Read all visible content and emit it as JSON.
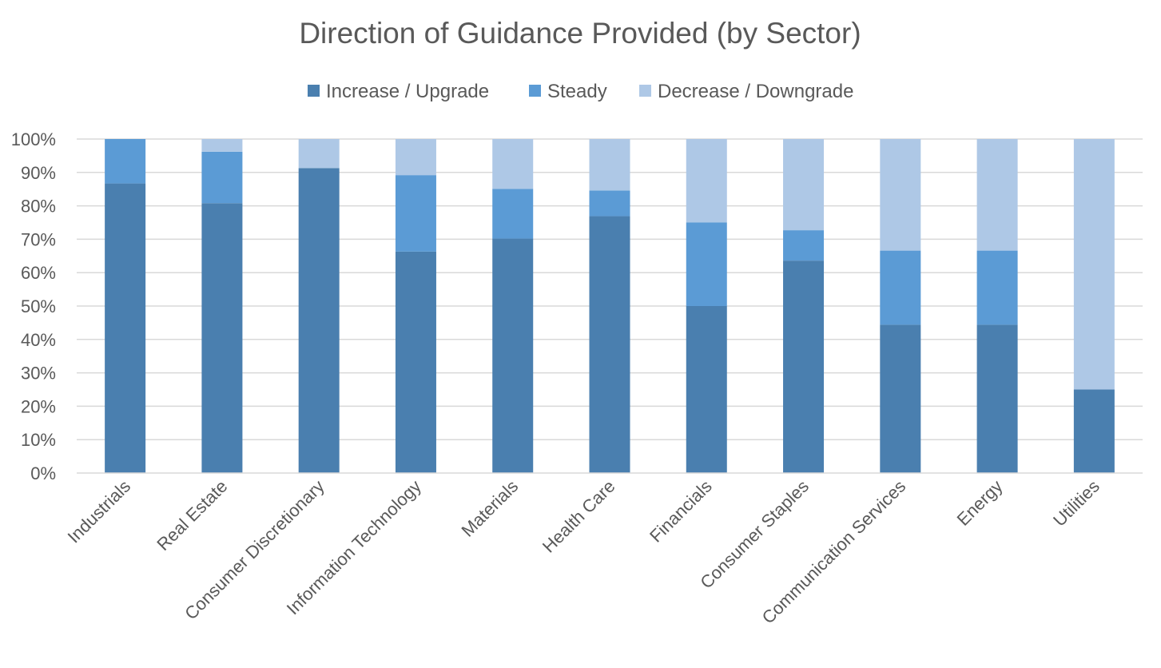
{
  "chart_data": {
    "type": "bar",
    "stacked": true,
    "title": "Direction of Guidance Provided (by Sector)",
    "xlabel": "",
    "ylabel": "",
    "ylim": [
      0,
      100
    ],
    "yticks": [
      "0%",
      "10%",
      "20%",
      "30%",
      "40%",
      "50%",
      "60%",
      "70%",
      "80%",
      "90%",
      "100%"
    ],
    "grid": true,
    "legend_position": "top",
    "categories": [
      "Industrials",
      "Real Estate",
      "Consumer Discretionary",
      "Information Technology",
      "Materials",
      "Health Care",
      "Financials",
      "Consumer Staples",
      "Communication Services",
      "Energy",
      "Utilities"
    ],
    "series": [
      {
        "name": "Increase / Upgrade",
        "color": "#4a7faf",
        "values": [
          86.7,
          80.8,
          91.3,
          66.3,
          70.2,
          76.9,
          50.0,
          63.6,
          44.4,
          44.4,
          25.0
        ]
      },
      {
        "name": "Steady",
        "color": "#5b9bd5",
        "values": [
          13.3,
          15.4,
          0.0,
          22.9,
          14.9,
          7.7,
          25.0,
          9.1,
          22.2,
          22.2,
          0.0
        ]
      },
      {
        "name": "Decrease / Downgrade",
        "color": "#aec8e6",
        "values": [
          0.0,
          3.8,
          8.7,
          10.8,
          14.9,
          15.4,
          25.0,
          27.3,
          33.4,
          33.4,
          75.0
        ]
      }
    ]
  }
}
